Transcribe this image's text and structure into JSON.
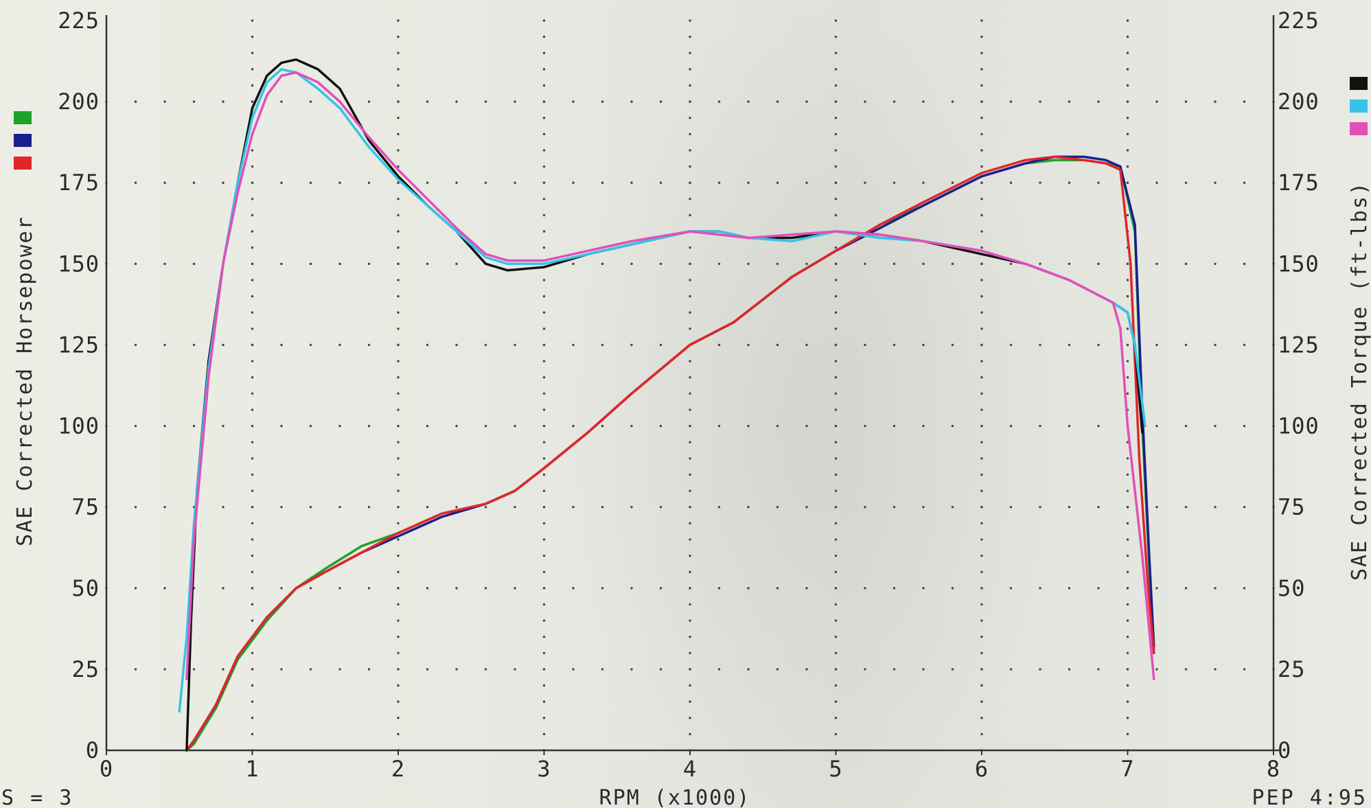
{
  "chart_data": {
    "type": "line",
    "title": "",
    "xlabel": "RPM (x1000)",
    "ylabel_left": "SAE Corrected Horsepower",
    "ylabel_right": "SAE Corrected Torque (ft-lbs)",
    "xlim": [
      0,
      8
    ],
    "ylim_left": [
      0,
      225
    ],
    "ylim_right": [
      0,
      225
    ],
    "x_ticks": [
      "0",
      "1",
      "2",
      "3",
      "4",
      "5",
      "6",
      "7",
      "8"
    ],
    "y_ticks_left": [
      "0",
      "25",
      "50",
      "75",
      "100",
      "125",
      "150",
      "175",
      "200",
      "225"
    ],
    "y_ticks_right": [
      "0",
      "25",
      "50",
      "75",
      "100",
      "125",
      "150",
      "175",
      "200",
      "225"
    ],
    "grid": "dotted",
    "legend_left": [
      {
        "color": "#1fa12a"
      },
      {
        "color": "#1a1f8c"
      },
      {
        "color": "#e0262a"
      }
    ],
    "legend_right": [
      {
        "color": "#111111"
      },
      {
        "color": "#36c3e8"
      },
      {
        "color": "#e24fb8"
      }
    ],
    "footer_left": "S = 3",
    "footer_right": "PEP 4:95",
    "series": [
      {
        "axis": "left",
        "color": "#1fa12a",
        "x": [
          0.55,
          0.6,
          0.75,
          0.9,
          1.1,
          1.3,
          1.5,
          1.75,
          2.0,
          2.3,
          2.6,
          2.8,
          3.0,
          3.3,
          3.6,
          4.0,
          4.3,
          4.7,
          5.0,
          5.3,
          5.6,
          6.0,
          6.3,
          6.5,
          6.7,
          6.85,
          6.95,
          7.05,
          7.1,
          7.15,
          7.18
        ],
        "y": [
          0,
          2,
          13,
          28,
          40,
          50,
          56,
          63,
          67,
          73,
          76,
          80,
          87,
          98,
          110,
          125,
          132,
          146,
          154,
          162,
          168,
          177,
          181,
          182,
          182,
          181,
          180,
          160,
          100,
          55,
          30
        ]
      },
      {
        "axis": "left",
        "color": "#1a1f8c",
        "x": [
          0.55,
          0.6,
          0.75,
          0.9,
          1.1,
          1.3,
          1.5,
          1.75,
          2.0,
          2.3,
          2.6,
          2.8,
          3.0,
          3.3,
          3.6,
          4.0,
          4.3,
          4.7,
          5.0,
          5.3,
          5.6,
          6.0,
          6.3,
          6.5,
          6.7,
          6.85,
          6.95,
          7.05,
          7.1,
          7.15,
          7.18
        ],
        "y": [
          0,
          3,
          14,
          29,
          41,
          50,
          55,
          61,
          66,
          72,
          76,
          80,
          87,
          98,
          110,
          125,
          132,
          146,
          154,
          161,
          168,
          177,
          181,
          183,
          183,
          182,
          180,
          162,
          105,
          58,
          32
        ]
      },
      {
        "axis": "left",
        "color": "#e0262a",
        "x": [
          0.55,
          0.6,
          0.75,
          0.9,
          1.1,
          1.3,
          1.5,
          1.75,
          2.0,
          2.3,
          2.6,
          2.8,
          3.0,
          3.3,
          3.6,
          4.0,
          4.3,
          4.7,
          5.0,
          5.3,
          5.6,
          6.0,
          6.3,
          6.5,
          6.7,
          6.85,
          6.95,
          7.02,
          7.08,
          7.14,
          7.18
        ],
        "y": [
          0,
          3,
          14,
          29,
          41,
          50,
          55,
          61,
          67,
          73,
          76,
          80,
          87,
          98,
          110,
          125,
          132,
          146,
          154,
          162,
          169,
          178,
          182,
          183,
          182,
          181,
          179,
          150,
          90,
          50,
          30
        ]
      },
      {
        "axis": "right",
        "color": "#111111",
        "x": [
          0.55,
          0.58,
          0.62,
          0.7,
          0.8,
          0.9,
          1.0,
          1.1,
          1.2,
          1.3,
          1.45,
          1.6,
          1.8,
          2.0,
          2.2,
          2.4,
          2.6,
          2.75,
          3.0,
          3.3,
          3.6,
          4.0,
          4.2,
          4.4,
          4.7,
          5.0,
          5.3,
          5.6,
          6.0,
          6.3,
          6.6,
          6.9,
          7.0,
          7.05,
          7.1
        ],
        "y": [
          0,
          40,
          80,
          120,
          150,
          175,
          198,
          208,
          212,
          213,
          210,
          204,
          188,
          177,
          168,
          160,
          150,
          148,
          149,
          153,
          156,
          160,
          160,
          158,
          158,
          160,
          159,
          157,
          153,
          150,
          145,
          138,
          135,
          125,
          98
        ]
      },
      {
        "axis": "right",
        "color": "#36c3e8",
        "x": [
          0.5,
          0.55,
          0.6,
          0.7,
          0.8,
          0.9,
          1.0,
          1.1,
          1.2,
          1.3,
          1.45,
          1.6,
          1.8,
          2.0,
          2.2,
          2.4,
          2.6,
          2.75,
          3.0,
          3.3,
          3.6,
          4.0,
          4.2,
          4.4,
          4.7,
          5.0,
          5.3,
          5.6,
          6.0,
          6.3,
          6.6,
          6.9,
          7.0,
          7.05,
          7.12
        ],
        "y": [
          12,
          35,
          70,
          118,
          150,
          175,
          195,
          206,
          210,
          209,
          204,
          198,
          186,
          176,
          168,
          160,
          152,
          150,
          150,
          153,
          156,
          160,
          160,
          158,
          157,
          160,
          158,
          157,
          154,
          150,
          145,
          138,
          135,
          125,
          100
        ]
      },
      {
        "axis": "right",
        "color": "#e24fb8",
        "x": [
          0.55,
          0.6,
          0.7,
          0.8,
          0.9,
          1.0,
          1.1,
          1.2,
          1.3,
          1.45,
          1.6,
          1.8,
          2.0,
          2.2,
          2.4,
          2.6,
          2.75,
          3.0,
          3.3,
          3.6,
          4.0,
          4.2,
          4.4,
          4.7,
          5.0,
          5.3,
          5.6,
          6.0,
          6.3,
          6.6,
          6.9,
          6.95,
          7.0,
          7.1,
          7.18
        ],
        "y": [
          22,
          65,
          115,
          150,
          172,
          190,
          202,
          208,
          209,
          206,
          200,
          189,
          179,
          170,
          161,
          153,
          151,
          151,
          154,
          157,
          160,
          159,
          158,
          159,
          160,
          159,
          157,
          154,
          150,
          145,
          138,
          130,
          100,
          60,
          22
        ]
      }
    ]
  }
}
